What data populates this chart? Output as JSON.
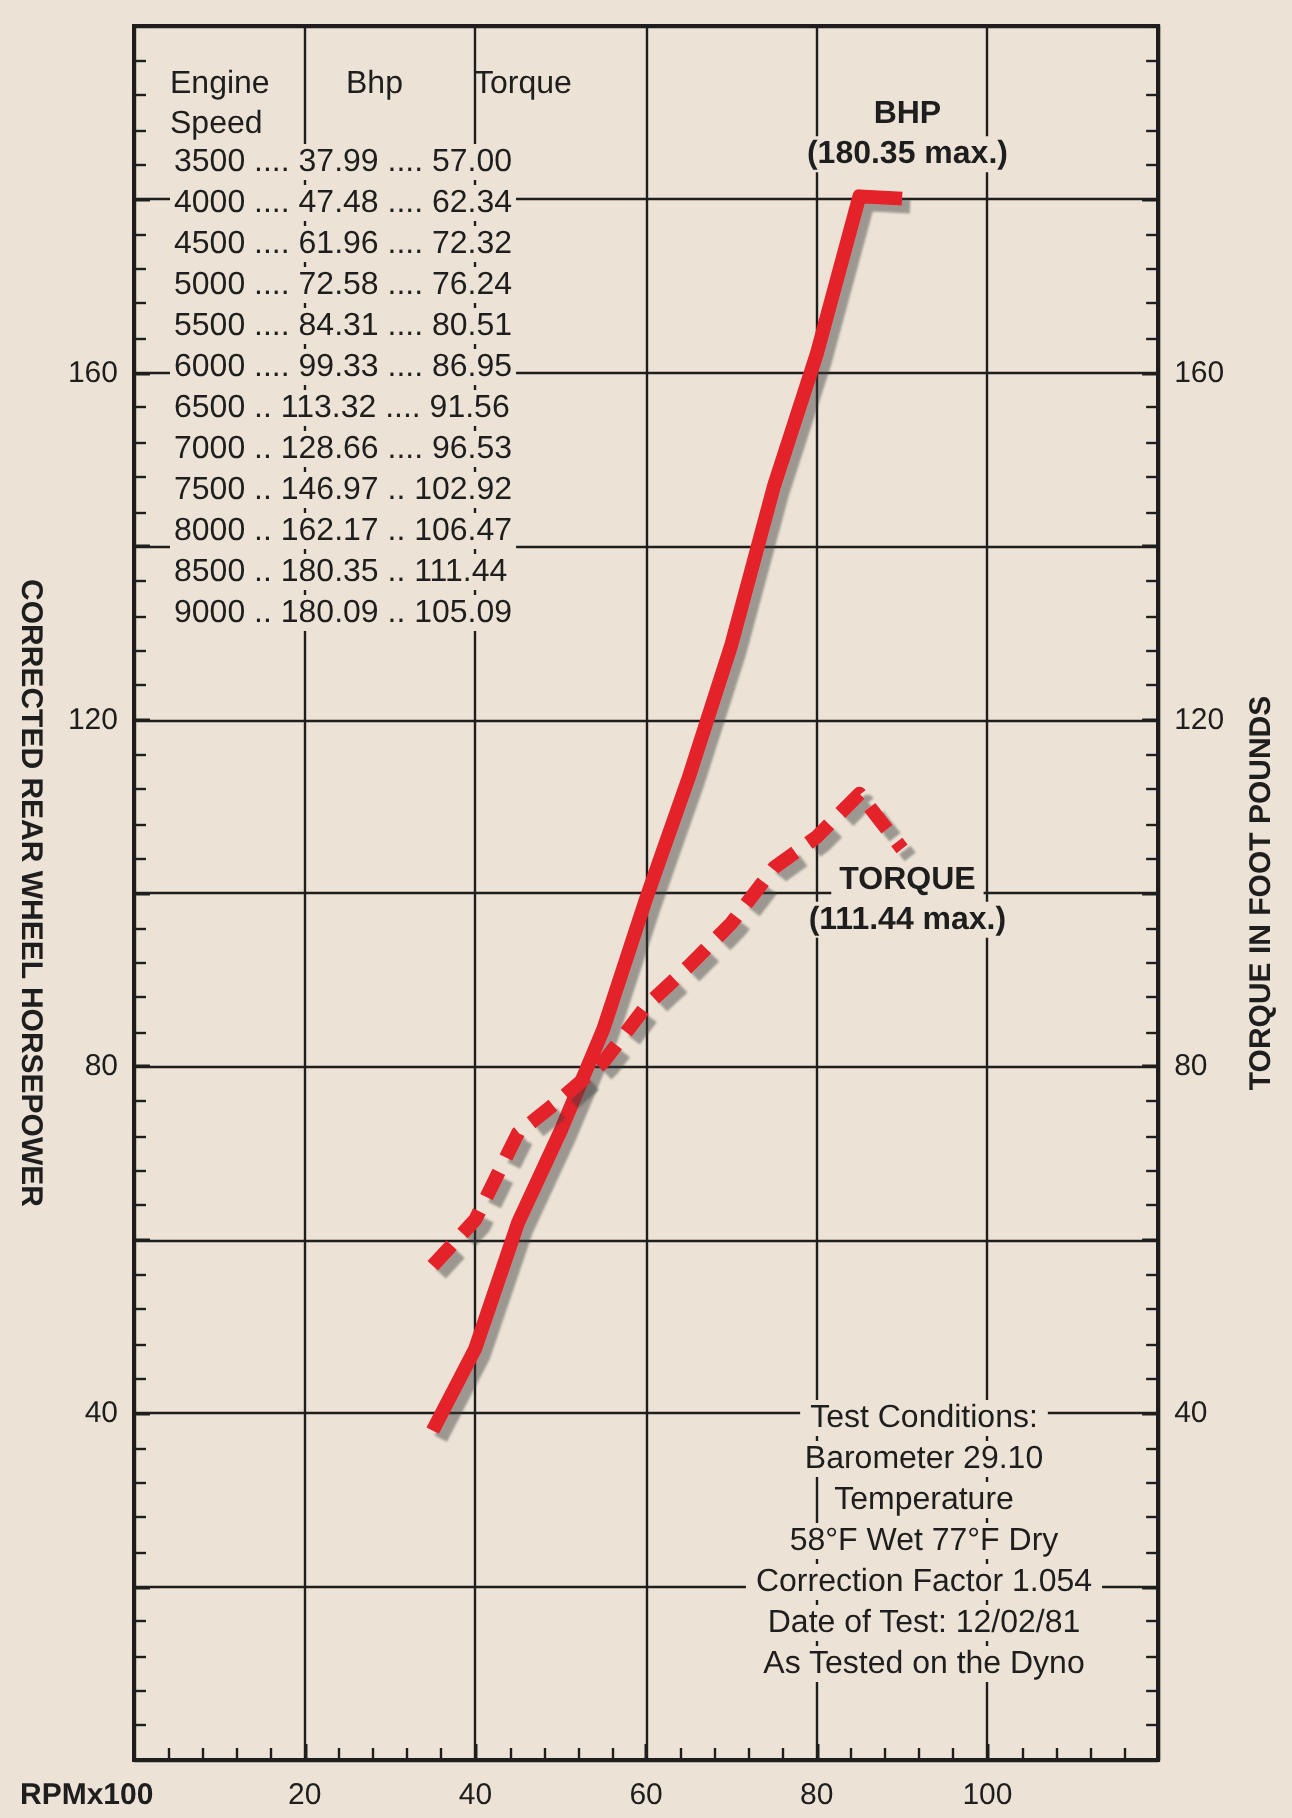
{
  "chart_data": {
    "type": "line",
    "xlabel": "RPMx100",
    "ylabel": "CORRECTED REAR WHEEL HORSEPOWER",
    "y2label": "TORQUE IN FOOT POUNDS",
    "x": [
      35,
      40,
      45,
      50,
      55,
      60,
      65,
      70,
      75,
      80,
      85,
      90
    ],
    "series": [
      {
        "name": "BHP",
        "color": "#e3202b",
        "line_style": "solid",
        "values": [
          37.99,
          47.48,
          61.96,
          72.58,
          84.31,
          99.33,
          113.32,
          128.66,
          146.97,
          162.17,
          180.35,
          180.09
        ]
      },
      {
        "name": "TORQUE",
        "color": "#e3202b",
        "line_style": "dashed",
        "axis": "y2",
        "values": [
          57.0,
          62.34,
          72.32,
          76.24,
          80.51,
          86.95,
          91.56,
          96.53,
          102.92,
          106.47,
          111.44,
          105.09
        ]
      }
    ],
    "xlim": [
      0,
      120
    ],
    "xticks": [
      {
        "value": 0,
        "label": null
      },
      20,
      40,
      60,
      80,
      100,
      {
        "value": 120,
        "label": null
      }
    ],
    "ylim": [
      0,
      200
    ],
    "yticks": [
      {
        "value": 0,
        "label": null
      },
      {
        "value": 20,
        "label": null
      },
      40,
      {
        "value": 60,
        "label": null
      },
      80,
      {
        "value": 100,
        "label": null
      },
      120,
      {
        "value": 140,
        "label": null
      },
      160,
      {
        "value": 180,
        "label": null
      },
      {
        "value": 200,
        "label": null
      }
    ],
    "y2lim": [
      0,
      200
    ],
    "y2ticks": [
      {
        "value": 0,
        "label": null
      },
      {
        "value": 20,
        "label": null
      },
      40,
      {
        "value": 60,
        "label": null
      },
      80,
      {
        "value": 100,
        "label": null
      },
      120,
      {
        "value": 140,
        "label": null
      },
      160,
      {
        "value": 180,
        "label": null
      },
      {
        "value": 200,
        "label": null
      }
    ],
    "grid": true,
    "legend": false,
    "marker": "none",
    "annotations": [
      "Engine Speed",
      "Bhp",
      "Torque",
      "3500 .... 37.99 .... 57.00",
      "4000 .... 47.48 .... 62.34",
      "4500 .... 61.96 .... 72.32",
      "5000 .... 72.58 .... 76.24",
      "5500 .... 84.31 .... 80.51",
      "6000 .... 99.33 .... 86.95",
      "6500 .. 113.32 .... 91.56",
      "7000 .. 128.66 .... 96.53",
      "7500 .. 146.97 .. 102.92",
      "8000 .. 162.17 .. 106.47",
      "8500 .. 180.35 .. 111.44",
      "9000 .. 180.09 .. 105.09",
      {
        "text": "(180.35 max.)",
        "x": 85,
        "y": 180.35
      },
      "(111.44 max.)",
      "Test Conditions:",
      "Barometer 29.10",
      "Temperature",
      "58°F Wet 77°F Dry",
      "Correction Factor 1.054",
      "Date of Test: 12/02/81",
      "As Tested on the Dyno"
    ]
  }
}
